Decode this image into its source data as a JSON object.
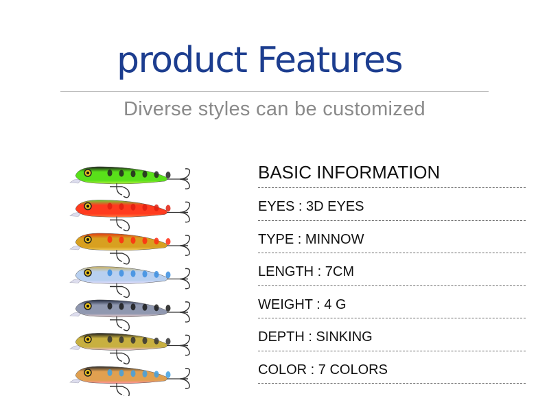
{
  "header": {
    "title": "product Features",
    "subtitle": "Diverse styles can be customized"
  },
  "info": {
    "heading": "BASIC INFORMATION",
    "rows": [
      "EYES : 3D EYES",
      "TYPE : MINNOW",
      "LENGTH : 7CM",
      "WEIGHT : 4 G",
      "DEPTH : SINKING",
      "COLOR : 7 COLORS"
    ]
  },
  "colors": {
    "title": "#1c3d8f",
    "subtitle": "#8a8a8a"
  },
  "lures": [
    {
      "name": "green-tiger",
      "back": "#1a1a1a",
      "body": "#59e01a",
      "belly": "#b8f040",
      "spots": "#222222"
    },
    {
      "name": "red-orange",
      "back": "#6ed23a",
      "body": "#ff3b1f",
      "belly": "#ff7a40",
      "spots": "#e02010"
    },
    {
      "name": "gold-red",
      "back": "#e03a10",
      "body": "#d8a020",
      "belly": "#f2d060",
      "spots": "#ff2a10"
    },
    {
      "name": "blue-silver",
      "back": "#c8b060",
      "body": "#b8d0f0",
      "belly": "#e8e0ff",
      "spots": "#3a8ee0"
    },
    {
      "name": "black-silver",
      "back": "#222a40",
      "body": "#9098b0",
      "belly": "#f0d0d0",
      "spots": "#1a1a1a"
    },
    {
      "name": "yellow-parr",
      "back": "#1a1a1a",
      "body": "#c8b040",
      "belly": "#f0c0e0",
      "spots": "#333333"
    },
    {
      "name": "rainbow-trout",
      "back": "#2a2a2a",
      "body": "#e0a050",
      "belly": "#ff90a0",
      "spots": "#40a0e0"
    }
  ]
}
